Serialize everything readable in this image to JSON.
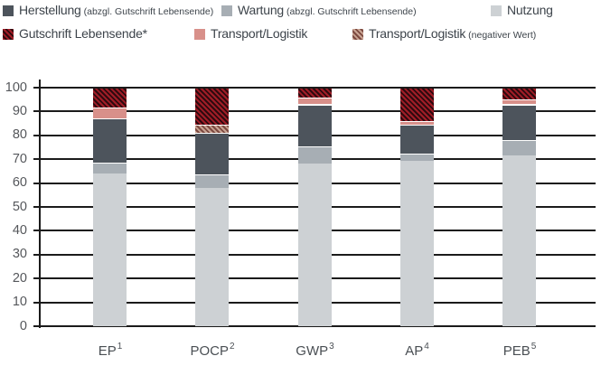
{
  "legend": {
    "items": [
      {
        "label": "Herstellung",
        "note": "(abzgl. Gutschrift Lebensende)",
        "series": "herstellung"
      },
      {
        "label": "Wartung",
        "note": "(abzgl. Gutschrift Lebensende)",
        "series": "wartung"
      },
      {
        "label": "Nutzung",
        "note": "",
        "series": "nutzung"
      },
      {
        "label": "Gutschrift Lebensende*",
        "note": "",
        "series": "gutschrift"
      },
      {
        "label": "Transport/Logistik",
        "note": "",
        "series": "transport"
      },
      {
        "label": "Transport/Logistik",
        "note": "(negativer Wert)",
        "series": "transport_negativ"
      }
    ]
  },
  "chart_data": {
    "type": "bar",
    "stacked": true,
    "title": "",
    "xlabel": "",
    "ylabel": "",
    "ylim": [
      0,
      100
    ],
    "y_ticks": [
      0,
      10,
      20,
      30,
      40,
      50,
      60,
      70,
      80,
      90,
      100
    ],
    "grid": true,
    "legend_position": "top-left",
    "categories": [
      "EP¹",
      "POCP²",
      "GWP³",
      "AP⁴",
      "PEB⁵"
    ],
    "categories_rich": [
      {
        "base": "EP",
        "sup": "1"
      },
      {
        "base": "POCP",
        "sup": "2"
      },
      {
        "base": "GWP",
        "sup": "3"
      },
      {
        "base": "AP",
        "sup": "4"
      },
      {
        "base": "PEB",
        "sup": "5"
      }
    ],
    "series_names": {
      "herstellung": "Herstellung (abzgl. Gutschrift Lebensende)",
      "wartung": "Wartung (abzgl. Gutschrift Lebensende)",
      "nutzung": "Nutzung",
      "gutschrift": "Gutschrift Lebensende*",
      "transport": "Transport/Logistik",
      "transport_negativ": "Transport/Logistik (negativer Wert)"
    },
    "bars": [
      {
        "category": "EP¹",
        "segments": [
          {
            "series": "nutzung",
            "value": 64
          },
          {
            "series": "wartung",
            "value": 4.5
          },
          {
            "series": "herstellung",
            "value": 18.5
          },
          {
            "series": "transport",
            "value": 4.5
          },
          {
            "series": "gutschrift",
            "value": 8.5
          }
        ]
      },
      {
        "category": "POCP²",
        "segments": [
          {
            "series": "nutzung",
            "value": 58
          },
          {
            "series": "wartung",
            "value": 5.5
          },
          {
            "series": "herstellung",
            "value": 17.5
          },
          {
            "series": "transport_negativ",
            "value": 3.5
          },
          {
            "series": "gutschrift",
            "value": 15.5
          }
        ]
      },
      {
        "category": "GWP³",
        "segments": [
          {
            "series": "nutzung",
            "value": 68
          },
          {
            "series": "wartung",
            "value": 7.5
          },
          {
            "series": "herstellung",
            "value": 17.5
          },
          {
            "series": "transport",
            "value": 3
          },
          {
            "series": "gutschrift",
            "value": 4
          }
        ]
      },
      {
        "category": "AP⁴",
        "segments": [
          {
            "series": "nutzung",
            "value": 69.5
          },
          {
            "series": "wartung",
            "value": 3
          },
          {
            "series": "herstellung",
            "value": 12
          },
          {
            "series": "transport",
            "value": 1.5
          },
          {
            "series": "gutschrift",
            "value": 14
          }
        ]
      },
      {
        "category": "PEB⁵",
        "segments": [
          {
            "series": "nutzung",
            "value": 71.5
          },
          {
            "series": "wartung",
            "value": 6.5
          },
          {
            "series": "herstellung",
            "value": 15
          },
          {
            "series": "transport",
            "value": 2
          },
          {
            "series": "gutschrift",
            "value": 5
          }
        ]
      }
    ]
  },
  "colors": {
    "herstellung": "#4d545c",
    "wartung": "#a7aeb4",
    "nutzung": "#cdd1d4",
    "transport": "#d8908a",
    "gutschrift_base": "#a11d27",
    "gutschrift_hatch": "#2f0a0f",
    "transport_negativ_base": "#c9a493",
    "transport_negativ_hatch": "#7d4a41",
    "grid": "#1b1b1b",
    "axis_text": "#55575b",
    "legend_text": "#3d444b"
  }
}
